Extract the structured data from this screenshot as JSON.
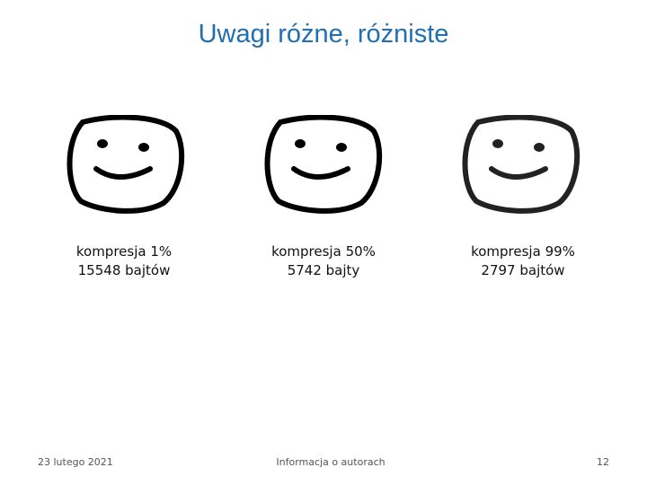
{
  "title": "Uwagi różne, różniste",
  "images": [
    {
      "caption": [
        "kompresja 1%",
        "15548 bajtów"
      ]
    },
    {
      "caption": [
        "kompresja 50%",
        "5742 bajty"
      ]
    },
    {
      "caption": [
        "kompresja 99%",
        "2797 bajtów"
      ]
    }
  ],
  "footer": {
    "date": "23 lutego 2021",
    "center": "Informacja o autorach",
    "page": "12"
  }
}
